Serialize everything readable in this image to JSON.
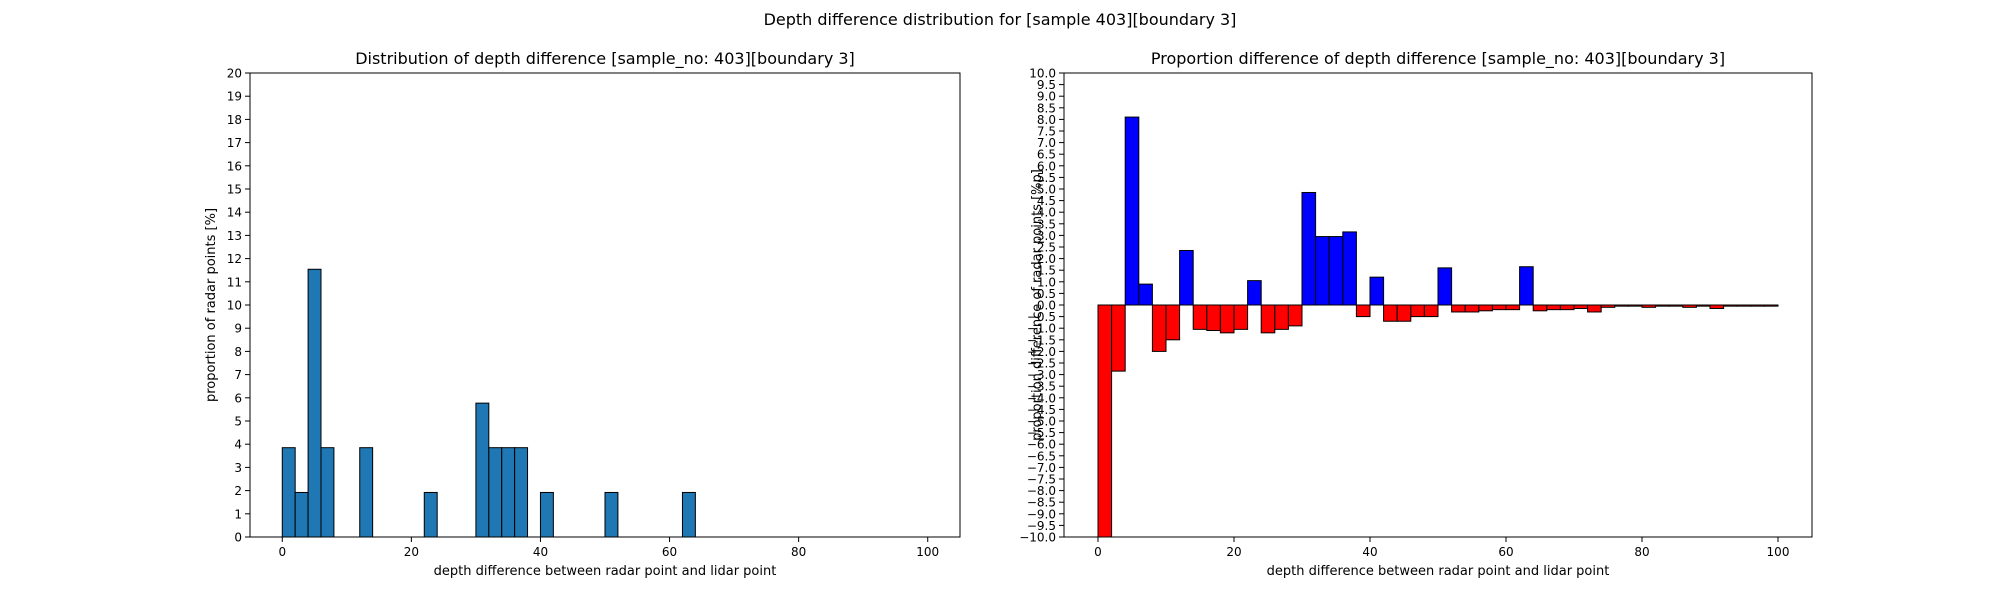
{
  "suptitle": "Depth difference distribution for [sample 403][boundary 3]",
  "chart_data": [
    {
      "type": "bar",
      "title": "Distribution of depth difference [sample_no: 403][boundary 3]",
      "xlabel": "depth difference between radar point and lidar point",
      "ylabel": "proportion of radar points [%]",
      "xlim": [
        -5,
        105
      ],
      "ylim": [
        0,
        20
      ],
      "xticks": [
        0,
        20,
        40,
        60,
        80,
        100
      ],
      "yticks": [
        0,
        1,
        2,
        3,
        4,
        5,
        6,
        7,
        8,
        9,
        10,
        11,
        12,
        13,
        14,
        15,
        16,
        17,
        18,
        19,
        20
      ],
      "bin_width": 2,
      "bar_color": "#1f77b4",
      "bin_starts": [
        0,
        2,
        4,
        6,
        12,
        22,
        30,
        32,
        34,
        36,
        40,
        50,
        62
      ],
      "values": [
        3.85,
        1.92,
        11.54,
        3.85,
        3.85,
        1.92,
        5.77,
        3.85,
        3.85,
        3.85,
        1.92,
        1.92,
        1.92
      ]
    },
    {
      "type": "bar",
      "title": "Proportion difference of depth difference [sample_no: 403][boundary 3]",
      "xlabel": "depth difference between radar point and lidar point",
      "ylabel": "proportion difference of radar points [%p]",
      "xlim": [
        -5,
        105
      ],
      "ylim": [
        -10,
        10
      ],
      "xticks": [
        0,
        20,
        40,
        60,
        80,
        100
      ],
      "yticks": [
        "10.0",
        "9.5",
        "9.0",
        "8.5",
        "8.0",
        "7.5",
        "7.0",
        "6.5",
        "6.0",
        "5.5",
        "5.0",
        "4.5",
        "4.0",
        "3.5",
        "3.0",
        "2.5",
        "2.0",
        "1.5",
        "1.0",
        "0.5",
        "0.0",
        "−0.5",
        "−1.0",
        "−1.5",
        "−2.0",
        "−2.5",
        "−3.0",
        "−3.5",
        "−4.0",
        "−4.5",
        "−5.0",
        "−5.5",
        "−6.0",
        "−6.5",
        "−7.0",
        "−7.5",
        "−8.0",
        "−8.5",
        "−9.0",
        "−9.5",
        "−10.0"
      ],
      "bin_width": 2,
      "positive_color": "#0000ff",
      "negative_color": "#ff0000",
      "bin_starts": [
        0,
        2,
        4,
        6,
        8,
        10,
        12,
        14,
        16,
        18,
        20,
        22,
        24,
        26,
        28,
        30,
        32,
        34,
        36,
        38,
        40,
        42,
        44,
        46,
        48,
        50,
        52,
        54,
        56,
        58,
        60,
        62,
        64,
        66,
        68,
        70,
        72,
        74,
        76,
        78,
        80,
        82,
        84,
        86,
        88,
        90,
        92,
        94,
        96,
        98
      ],
      "values": [
        -10.0,
        -2.85,
        8.1,
        0.9,
        -2.0,
        -1.5,
        2.35,
        -1.05,
        -1.1,
        -1.2,
        -1.05,
        1.05,
        -1.2,
        -1.05,
        -0.9,
        4.85,
        2.95,
        2.95,
        3.15,
        -0.5,
        1.2,
        -0.7,
        -0.7,
        -0.5,
        -0.5,
        1.6,
        -0.3,
        -0.3,
        -0.25,
        -0.2,
        -0.2,
        1.65,
        -0.25,
        -0.2,
        -0.2,
        -0.15,
        -0.3,
        -0.1,
        -0.05,
        -0.05,
        -0.1,
        -0.05,
        -0.05,
        -0.1,
        -0.05,
        -0.15,
        -0.05,
        -0.05,
        -0.05,
        -0.05
      ]
    }
  ]
}
